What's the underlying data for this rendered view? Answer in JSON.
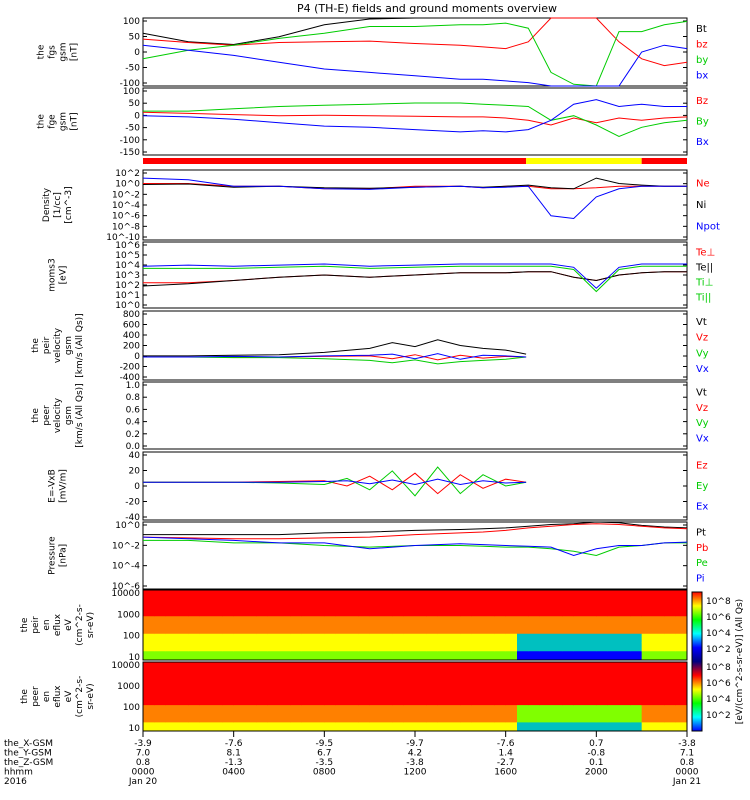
{
  "title": "P4 (TH-E) fields and ground moments overview",
  "chart_data": [
    {
      "type": "line",
      "panel": "fgs",
      "ylabel": [
        "the",
        "fgs",
        "gsm",
        "[nT]"
      ],
      "ylim": [
        -100,
        100
      ],
      "yticks": [
        "100",
        "50",
        "0",
        "-50",
        "-100"
      ],
      "legend": [
        {
          "text": "Bt",
          "color": "#000000"
        },
        {
          "text": "bz",
          "color": "#ff0000"
        },
        {
          "text": "by",
          "color": "#00cc00"
        },
        {
          "text": "bx",
          "color": "#0000ff"
        }
      ],
      "x": [
        0,
        2,
        4,
        6,
        8,
        10,
        12,
        14,
        15,
        16,
        17,
        18,
        19,
        20,
        21,
        22,
        23,
        24
      ],
      "series": [
        {
          "name": "Bt",
          "color": "#000000",
          "values": [
            55,
            30,
            22,
            45,
            80,
            97,
            100,
            100,
            100,
            100,
            100,
            100,
            100,
            100,
            100,
            100,
            100,
            100
          ]
        },
        {
          "name": "bz",
          "color": "#ff0000",
          "values": [
            38,
            28,
            20,
            28,
            30,
            32,
            25,
            20,
            15,
            10,
            30,
            100,
            100,
            100,
            30,
            -20,
            -40,
            -30
          ]
        },
        {
          "name": "by",
          "color": "#00cc00",
          "values": [
            -20,
            5,
            20,
            40,
            55,
            75,
            75,
            80,
            80,
            85,
            70,
            -60,
            -95,
            -100,
            60,
            60,
            80,
            90
          ]
        },
        {
          "name": "bx",
          "color": "#0000ff",
          "values": [
            20,
            5,
            -10,
            -30,
            -50,
            -60,
            -70,
            -80,
            -80,
            -85,
            -90,
            -100,
            -100,
            -100,
            -100,
            0,
            20,
            10
          ]
        }
      ]
    },
    {
      "type": "line",
      "panel": "fge",
      "ylabel": [
        "the",
        "fge",
        "gsm",
        "[nT]"
      ],
      "ylim": [
        -180,
        110
      ],
      "yticks": [
        "100",
        "50",
        "0",
        "-50",
        "-100",
        "-150"
      ],
      "legend": [
        {
          "text": "Bz",
          "color": "#ff0000"
        },
        {
          "text": "By",
          "color": "#00cc00"
        },
        {
          "text": "Bx",
          "color": "#0000ff"
        }
      ],
      "x": [
        0,
        2,
        4,
        6,
        8,
        10,
        12,
        14,
        15,
        16,
        17,
        18,
        19,
        20,
        21,
        22,
        23,
        24
      ],
      "series": [
        {
          "name": "Bz",
          "color": "#ff0000",
          "values": [
            5,
            0,
            -5,
            -10,
            -8,
            -10,
            -12,
            -15,
            -15,
            -20,
            -30,
            -50,
            -20,
            -40,
            -20,
            -30,
            -20,
            -15
          ]
        },
        {
          "name": "By",
          "color": "#00cc00",
          "values": [
            10,
            10,
            20,
            30,
            35,
            40,
            45,
            45,
            40,
            35,
            30,
            -30,
            -10,
            -50,
            -100,
            -60,
            -40,
            -30
          ]
        },
        {
          "name": "Bx",
          "color": "#0000ff",
          "values": [
            -10,
            -15,
            -25,
            -40,
            -55,
            -60,
            -70,
            -80,
            -75,
            -80,
            -70,
            -30,
            40,
            60,
            30,
            40,
            30,
            30
          ]
        }
      ]
    },
    {
      "type": "line",
      "panel": "density",
      "ylabel": [
        "Density",
        "[1/cc]",
        "[cm^-3]"
      ],
      "ylim": [
        -10,
        3
      ],
      "yticks": [
        "10^2",
        "10^0",
        "10^-2",
        "10^-4",
        "10^-6",
        "10^-8",
        "10^-10"
      ],
      "legend": [
        {
          "text": "Ne",
          "color": "#ff0000"
        },
        {
          "text": "Ni",
          "color": "#000000"
        },
        {
          "text": "Npot",
          "color": "#0000ff"
        }
      ],
      "x": [
        0,
        2,
        4,
        6,
        8,
        10,
        12,
        14,
        15,
        16,
        17,
        18,
        19,
        20,
        21,
        22,
        23,
        24
      ],
      "series": [
        {
          "name": "Ne",
          "color": "#ff0000",
          "values": [
            0.5,
            0.5,
            0,
            0,
            -0.5,
            -0.5,
            0,
            0,
            -0.3,
            0,
            0,
            -0.5,
            -0.5,
            -0.3,
            0,
            0,
            0,
            0
          ]
        },
        {
          "name": "Ni",
          "color": "#000000",
          "values": [
            0.3,
            0.4,
            -0.2,
            0,
            -0.3,
            -0.4,
            -0.2,
            0,
            -0.2,
            0,
            0.2,
            -0.3,
            -0.5,
            1.5,
            0.5,
            0.2,
            0,
            0
          ]
        },
        {
          "name": "Npot",
          "color": "#0000ff",
          "values": [
            1.5,
            1.2,
            0,
            0,
            -0.5,
            -0.6,
            -0.2,
            0,
            -0.3,
            -0.2,
            0,
            -5.5,
            -6,
            -2,
            -0.5,
            0,
            0,
            0
          ]
        }
      ]
    },
    {
      "type": "line",
      "panel": "moments3",
      "ylabel": [
        "moms3",
        "[eV]"
      ],
      "ylim": [
        0,
        6
      ],
      "yticks": [
        "10^6",
        "10^5",
        "10^4",
        "10^3",
        "10^2",
        "10^1",
        "10^0"
      ],
      "legend": [
        {
          "text": "Te⊥",
          "color": "#ff0000"
        },
        {
          "text": "Te||",
          "color": "#000000"
        },
        {
          "text": "Ti⊥",
          "color": "#00cc00"
        },
        {
          "text": "Ti||",
          "color": "#00cc00"
        }
      ],
      "x": [
        0,
        2,
        4,
        6,
        8,
        10,
        12,
        14,
        15,
        16,
        17,
        18,
        19,
        20,
        21,
        22,
        23,
        24
      ],
      "series": [
        {
          "name": "Te⊥",
          "color": "#ff0000",
          "values": [
            2.3,
            2.3,
            2.5,
            2.8,
            3,
            2.8,
            3,
            3.2,
            3.2,
            3.2,
            3.3,
            3.3,
            2.8,
            2.5,
            3,
            3.2,
            3.3,
            3.3
          ]
        },
        {
          "name": "Te||",
          "color": "#000000",
          "values": [
            2,
            2.2,
            2.5,
            2.8,
            3,
            2.8,
            3,
            3.2,
            3.2,
            3.2,
            3.3,
            3.3,
            2.8,
            2.5,
            3,
            3.2,
            3.3,
            3.3
          ]
        },
        {
          "name": "Ti⊥",
          "color": "#00cc00",
          "values": [
            3.6,
            3.6,
            3.6,
            3.7,
            3.8,
            3.6,
            3.7,
            3.8,
            3.8,
            3.8,
            3.8,
            3.8,
            3.5,
            1.5,
            3.5,
            3.8,
            3.8,
            3.8
          ]
        },
        {
          "name": "Ti||",
          "color": "#0000ff",
          "values": [
            3.8,
            3.9,
            3.8,
            3.9,
            4,
            3.8,
            3.9,
            4,
            4,
            4,
            4,
            4,
            3.7,
            1.8,
            3.7,
            4,
            4,
            4
          ]
        }
      ]
    },
    {
      "type": "line",
      "panel": "peir velocity",
      "ylabel": [
        "the",
        "peir",
        "velocity",
        "gsm",
        "[km/s (All Qs)]"
      ],
      "ylim": [
        -400,
        800
      ],
      "yticks": [
        "800",
        "600",
        "400",
        "200",
        "0",
        "-200",
        "-400"
      ],
      "legend": [
        {
          "text": "Vt",
          "color": "#000000"
        },
        {
          "text": "Vz",
          "color": "#ff0000"
        },
        {
          "text": "Vy",
          "color": "#00cc00"
        },
        {
          "text": "Vx",
          "color": "#0000ff"
        }
      ],
      "x": [
        0,
        2,
        4,
        6,
        8,
        10,
        11,
        12,
        13,
        14,
        15,
        16,
        16.9
      ],
      "series": [
        {
          "name": "Vt",
          "color": "#000000",
          "values": [
            20,
            20,
            30,
            40,
            80,
            150,
            250,
            180,
            300,
            200,
            150,
            120,
            50
          ]
        },
        {
          "name": "Vz",
          "color": "#ff0000",
          "values": [
            0,
            0,
            0,
            0,
            10,
            20,
            -30,
            40,
            -50,
            30,
            -20,
            10,
            0
          ]
        },
        {
          "name": "Vy",
          "color": "#00cc00",
          "values": [
            0,
            0,
            -10,
            -10,
            -30,
            -60,
            -100,
            -50,
            -120,
            -80,
            -60,
            -40,
            0
          ]
        },
        {
          "name": "Vx",
          "color": "#0000ff",
          "values": [
            0,
            0,
            10,
            0,
            20,
            30,
            50,
            -30,
            60,
            -40,
            30,
            20,
            0
          ]
        }
      ]
    },
    {
      "type": "line",
      "panel": "peer velocity",
      "ylabel": [
        "the",
        "peer",
        "velocity",
        "gsm",
        "[km/s (All Qs)]"
      ],
      "ylim": [
        0,
        1
      ],
      "yticks": [
        "1.0",
        "0.8",
        "0.6",
        "0.4",
        "0.2",
        "0.0"
      ],
      "legend": [
        {
          "text": "Vt",
          "color": "#000000"
        },
        {
          "text": "Vz",
          "color": "#ff0000"
        },
        {
          "text": "Vy",
          "color": "#00cc00"
        },
        {
          "text": "Vx",
          "color": "#0000ff"
        }
      ],
      "x": [],
      "series": []
    },
    {
      "type": "line",
      "panel": "efield",
      "ylabel": [
        "E=-VxB",
        "[mV/m]"
      ],
      "ylim": [
        -50,
        40
      ],
      "yticks": [
        "40",
        "20",
        "0",
        "-20",
        "-40"
      ],
      "legend": [
        {
          "text": "Ez",
          "color": "#ff0000"
        },
        {
          "text": "Ey",
          "color": "#00cc00"
        },
        {
          "text": "Ex",
          "color": "#0000ff"
        }
      ],
      "x": [
        0,
        2,
        4,
        6,
        8,
        9,
        10,
        11,
        12,
        13,
        14,
        15,
        16,
        16.9
      ],
      "series": [
        {
          "name": "Ez",
          "color": "#ff0000",
          "values": [
            0,
            0,
            0,
            1,
            2,
            -5,
            8,
            -10,
            12,
            -15,
            10,
            -8,
            4,
            0
          ]
        },
        {
          "name": "Ey",
          "color": "#00cc00",
          "values": [
            0,
            0,
            0,
            -1,
            -3,
            5,
            -10,
            15,
            -18,
            20,
            -15,
            10,
            -5,
            0
          ]
        },
        {
          "name": "Ex",
          "color": "#0000ff",
          "values": [
            0,
            0,
            0,
            0,
            1,
            2,
            -2,
            3,
            -3,
            4,
            -3,
            2,
            -1,
            0
          ]
        }
      ]
    },
    {
      "type": "line",
      "panel": "pressure",
      "ylabel": [
        "Pressure",
        "[nPa]"
      ],
      "ylim": [
        -7,
        1
      ],
      "yticks": [
        "10^0",
        "10^-2",
        "10^-4",
        "10^-6"
      ],
      "legend": [
        {
          "text": "Pt",
          "color": "#000000"
        },
        {
          "text": "Pb",
          "color": "#ff0000"
        },
        {
          "text": "Pe",
          "color": "#00cc00"
        },
        {
          "text": "Pi",
          "color": "#0000ff"
        }
      ],
      "x": [
        0,
        2,
        4,
        6,
        8,
        10,
        12,
        14,
        15,
        16,
        17,
        18,
        19,
        20,
        21,
        22,
        23,
        24
      ],
      "series": [
        {
          "name": "Pt",
          "color": "#000000",
          "values": [
            -0.5,
            -0.5,
            -0.5,
            -0.5,
            -0.3,
            -0.2,
            0,
            0.1,
            0.2,
            0.3,
            0.5,
            0.7,
            0.8,
            1,
            0.9,
            0.6,
            0.4,
            0.3
          ]
        },
        {
          "name": "Pb",
          "color": "#ff0000",
          "values": [
            -0.8,
            -0.9,
            -1,
            -1,
            -0.9,
            -0.8,
            -0.5,
            -0.3,
            -0.2,
            0,
            0.3,
            0.5,
            0.7,
            0.8,
            0.7,
            0.5,
            0.3,
            0.2
          ]
        },
        {
          "name": "Pe",
          "color": "#00cc00",
          "values": [
            -1.2,
            -1.2,
            -1.5,
            -1.5,
            -1.8,
            -2,
            -1.8,
            -1.8,
            -1.9,
            -2,
            -2,
            -2.2,
            -2.5,
            -3,
            -2,
            -1.8,
            -1.5,
            -1.5
          ]
        },
        {
          "name": "Pi",
          "color": "#0000ff",
          "values": [
            -0.8,
            -1,
            -1.2,
            -1.5,
            -1.5,
            -2.2,
            -1.8,
            -1.6,
            -1.7,
            -1.8,
            -1.9,
            -2,
            -3,
            -2.2,
            -1.8,
            -1.8,
            -1.5,
            -1.4
          ]
        }
      ]
    },
    {
      "type": "heatmap",
      "panel": "peir en eflux",
      "ylabel": [
        "the",
        "peir",
        "en",
        "eflux",
        "eV",
        "(cm^2-s-",
        "sr-eV)"
      ],
      "yticks": [
        "10000",
        "1000",
        "100",
        "10"
      ],
      "colorbar_ticks": [
        "10^8",
        "10^6",
        "10^4",
        "10^2"
      ]
    },
    {
      "type": "heatmap",
      "panel": "peer en eflux",
      "ylabel": [
        "the",
        "peer",
        "en",
        "eflux",
        "eV",
        "(cm^2-s-",
        "sr-eV)"
      ],
      "yticks": [
        "10000",
        "1000",
        "100",
        "10"
      ],
      "colorbar_ticks": [
        "10^8",
        "10^6",
        "10^4",
        "10^2"
      ]
    }
  ],
  "colorbar_label": "[eV/(cm^2-s-sr-eV)] (All Qs)",
  "xaxis": {
    "rows": [
      {
        "label": "the_X-GSM",
        "values": [
          "-3.9",
          "-7.6",
          "-9.5",
          "-9.7",
          "-7.6",
          "0.7",
          "-3.8"
        ]
      },
      {
        "label": "the_Y-GSM",
        "values": [
          "7.0",
          "8.1",
          "6.7",
          "4.2",
          "1.4",
          "-0.8",
          "7.1"
        ]
      },
      {
        "label": "the_Z-GSM",
        "values": [
          "0.8",
          "-1.3",
          "-3.5",
          "-3.8",
          "-2.7",
          "0.1",
          "0.8"
        ]
      },
      {
        "label": "hhmm",
        "values": [
          "0000",
          "0400",
          "0800",
          "1200",
          "1600",
          "2000",
          "0000"
        ]
      },
      {
        "label": "2016",
        "values": [
          "Jan 20",
          "",
          "",
          "",
          "",
          "",
          "Jan 21"
        ]
      }
    ]
  },
  "status_bar": {
    "colors": [
      "#ff0000",
      "#ffff00",
      "#ff0000"
    ],
    "spans": [
      [
        0,
        16.9
      ],
      [
        16.9,
        22
      ],
      [
        22,
        24
      ]
    ]
  }
}
